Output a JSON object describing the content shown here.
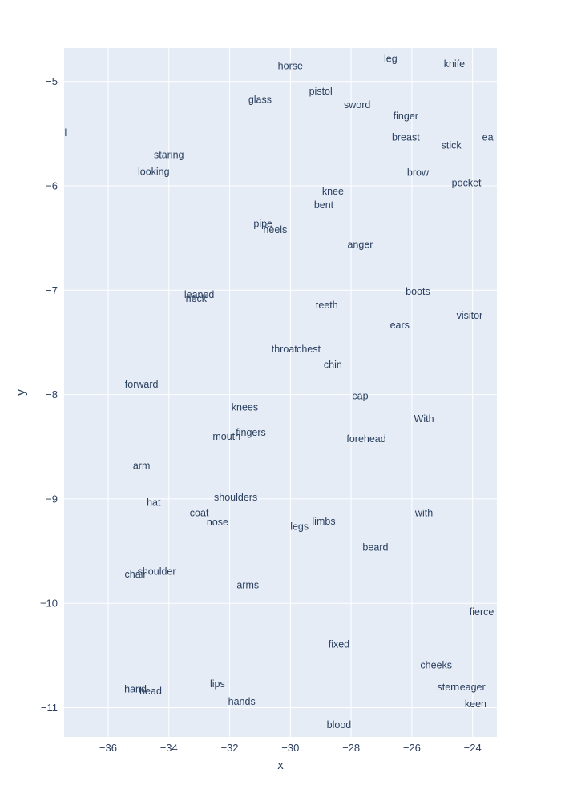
{
  "chart_data": {
    "type": "scatter",
    "mode": "text",
    "xlabel": "x",
    "ylabel": "y",
    "xlim": [
      -37.45,
      -23.2
    ],
    "ylim": [
      -11.28,
      -4.68
    ],
    "xticks": [
      -36,
      -34,
      -32,
      -30,
      -28,
      -26,
      -24
    ],
    "yticks": [
      -5,
      -6,
      -7,
      -8,
      -9,
      -10,
      -11
    ],
    "xtick_labels": [
      "−36",
      "−34",
      "−32",
      "−30",
      "−28",
      "−26",
      "−24"
    ],
    "ytick_labels": [
      "−5",
      "−6",
      "−7",
      "−8",
      "−9",
      "−10",
      "−11"
    ],
    "grid": true,
    "colors": {
      "plot_bg": "#e5ecf6",
      "grid": "#ffffff",
      "text": "#2a3f5f"
    },
    "points": [
      {
        "label": "horse",
        "x": -30.0,
        "y": -4.85
      },
      {
        "label": "leg",
        "x": -26.7,
        "y": -4.78
      },
      {
        "label": "knife",
        "x": -24.6,
        "y": -4.83
      },
      {
        "label": "pistol",
        "x": -29.0,
        "y": -5.09
      },
      {
        "label": "glass",
        "x": -31.0,
        "y": -5.17
      },
      {
        "label": "sword",
        "x": -27.8,
        "y": -5.22
      },
      {
        "label": "finger",
        "x": -26.2,
        "y": -5.33
      },
      {
        "label": "breast",
        "x": -26.2,
        "y": -5.53
      },
      {
        "label": "stick",
        "x": -24.7,
        "y": -5.61
      },
      {
        "label": "ea",
        "x": -23.5,
        "y": -5.53
      },
      {
        "label": "l",
        "x": -37.4,
        "y": -5.49
      },
      {
        "label": "staring",
        "x": -34.0,
        "y": -5.7
      },
      {
        "label": "looking",
        "x": -34.5,
        "y": -5.86
      },
      {
        "label": "brow",
        "x": -25.8,
        "y": -5.87
      },
      {
        "label": "pocket",
        "x": -24.2,
        "y": -5.97
      },
      {
        "label": "knee",
        "x": -28.6,
        "y": -6.05
      },
      {
        "label": "bent",
        "x": -28.9,
        "y": -6.18
      },
      {
        "label": "pipe",
        "x": -30.9,
        "y": -6.36
      },
      {
        "label": "heels",
        "x": -30.5,
        "y": -6.42
      },
      {
        "label": "anger",
        "x": -27.7,
        "y": -6.56
      },
      {
        "label": "leaned",
        "x": -33.0,
        "y": -7.04
      },
      {
        "label": "neck",
        "x": -33.1,
        "y": -7.08
      },
      {
        "label": "boots",
        "x": -25.8,
        "y": -7.01
      },
      {
        "label": "teeth",
        "x": -28.8,
        "y": -7.14
      },
      {
        "label": "visitor",
        "x": -24.1,
        "y": -7.24
      },
      {
        "label": "ears",
        "x": -26.4,
        "y": -7.33
      },
      {
        "label": "throat",
        "x": -30.2,
        "y": -7.56
      },
      {
        "label": "chest",
        "x": -29.4,
        "y": -7.56
      },
      {
        "label": "chin",
        "x": -28.6,
        "y": -7.71
      },
      {
        "label": "forward",
        "x": -34.9,
        "y": -7.9
      },
      {
        "label": "cap",
        "x": -27.7,
        "y": -8.01
      },
      {
        "label": "knees",
        "x": -31.5,
        "y": -8.12
      },
      {
        "label": "With",
        "x": -25.6,
        "y": -8.23
      },
      {
        "label": "fingers",
        "x": -31.3,
        "y": -8.36
      },
      {
        "label": "mouth",
        "x": -32.1,
        "y": -8.4
      },
      {
        "label": "forehead",
        "x": -27.5,
        "y": -8.42
      },
      {
        "label": "arm",
        "x": -34.9,
        "y": -8.68
      },
      {
        "label": "shoulders",
        "x": -31.8,
        "y": -8.98
      },
      {
        "label": "hat",
        "x": -34.5,
        "y": -9.03
      },
      {
        "label": "coat",
        "x": -33.0,
        "y": -9.13
      },
      {
        "label": "with",
        "x": -25.6,
        "y": -9.13
      },
      {
        "label": "nose",
        "x": -32.4,
        "y": -9.22
      },
      {
        "label": "limbs",
        "x": -28.9,
        "y": -9.21
      },
      {
        "label": "legs",
        "x": -29.7,
        "y": -9.26
      },
      {
        "label": "beard",
        "x": -27.2,
        "y": -9.46
      },
      {
        "label": "shoulder",
        "x": -34.4,
        "y": -9.69
      },
      {
        "label": "chair",
        "x": -35.1,
        "y": -9.72
      },
      {
        "label": "arms",
        "x": -31.4,
        "y": -9.82
      },
      {
        "label": "fierce",
        "x": -23.7,
        "y": -10.08
      },
      {
        "label": "fixed",
        "x": -28.4,
        "y": -10.39
      },
      {
        "label": "cheeks",
        "x": -25.2,
        "y": -10.59
      },
      {
        "label": "lips",
        "x": -32.4,
        "y": -10.77
      },
      {
        "label": "stern",
        "x": -24.8,
        "y": -10.8
      },
      {
        "label": "eager",
        "x": -24.0,
        "y": -10.8
      },
      {
        "label": "hand",
        "x": -35.1,
        "y": -10.82
      },
      {
        "label": "head",
        "x": -34.6,
        "y": -10.84
      },
      {
        "label": "hands",
        "x": -31.6,
        "y": -10.94
      },
      {
        "label": "keen",
        "x": -23.9,
        "y": -10.96
      },
      {
        "label": "blood",
        "x": -28.4,
        "y": -11.16
      }
    ]
  }
}
